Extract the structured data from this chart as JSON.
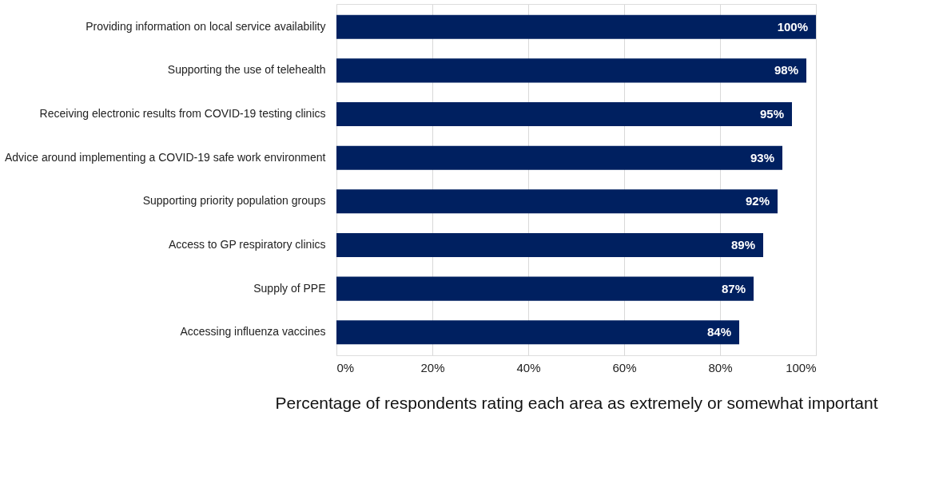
{
  "chart_data": {
    "type": "bar",
    "orientation": "horizontal",
    "xlabel": "Percentage of respondents rating each area as extremely  or somewhat important",
    "categories": [
      "Providing information on local service availability",
      "Supporting the use of telehealth",
      "Receiving electronic results from COVID-19 testing clinics",
      "Advice around implementing a COVID-19 safe work environment",
      "Supporting priority population groups",
      "Access to GP respiratory clinics",
      "Supply of PPE",
      "Accessing influenza vaccines"
    ],
    "values": [
      100,
      98,
      95,
      93,
      92,
      89,
      87,
      84
    ],
    "value_labels": [
      "100%",
      "98%",
      "95%",
      "93%",
      "92%",
      "89%",
      "87%",
      "84%"
    ],
    "color": "#002060",
    "xlim": [
      0,
      100
    ],
    "xticks": [
      {
        "value": 0,
        "label": "0%"
      },
      {
        "value": 20,
        "label": "20%"
      },
      {
        "value": 40,
        "label": "40%"
      },
      {
        "value": 60,
        "label": "60%"
      },
      {
        "value": 80,
        "label": "80%"
      },
      {
        "value": 100,
        "label": "100%"
      }
    ],
    "grid": "x"
  }
}
